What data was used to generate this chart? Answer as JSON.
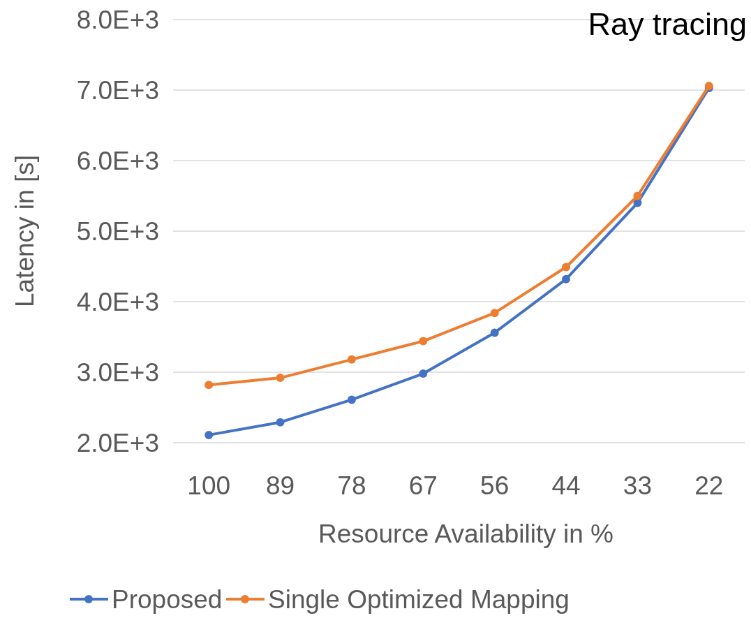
{
  "chart_data": {
    "type": "line",
    "title": "Ray tracing",
    "xlabel": "Resource Availability in %",
    "ylabel": "Latency in [s]",
    "categories": [
      "100",
      "89",
      "78",
      "67",
      "56",
      "44",
      "33",
      "22"
    ],
    "series": [
      {
        "name": "Proposed",
        "color": "#4472c4",
        "values": [
          2110,
          2290,
          2610,
          2980,
          3560,
          4320,
          5400,
          7030
        ]
      },
      {
        "name": "Single Optimized Mapping",
        "color": "#ed7d31",
        "values": [
          2820,
          2920,
          3180,
          3440,
          3840,
          4490,
          5500,
          7060
        ]
      }
    ],
    "ylim": [
      2000,
      8000
    ],
    "yticks": [
      {
        "value": 2000,
        "label": "2.0E+3"
      },
      {
        "value": 3000,
        "label": "3.0E+3"
      },
      {
        "value": 4000,
        "label": "4.0E+3"
      },
      {
        "value": 5000,
        "label": "5.0E+3"
      },
      {
        "value": 6000,
        "label": "6.0E+3"
      },
      {
        "value": 7000,
        "label": "7.0E+3"
      },
      {
        "value": 8000,
        "label": "8.0E+3"
      }
    ],
    "grid": "y",
    "legend": "bottom",
    "marker": "circle",
    "line_style": "solid"
  }
}
